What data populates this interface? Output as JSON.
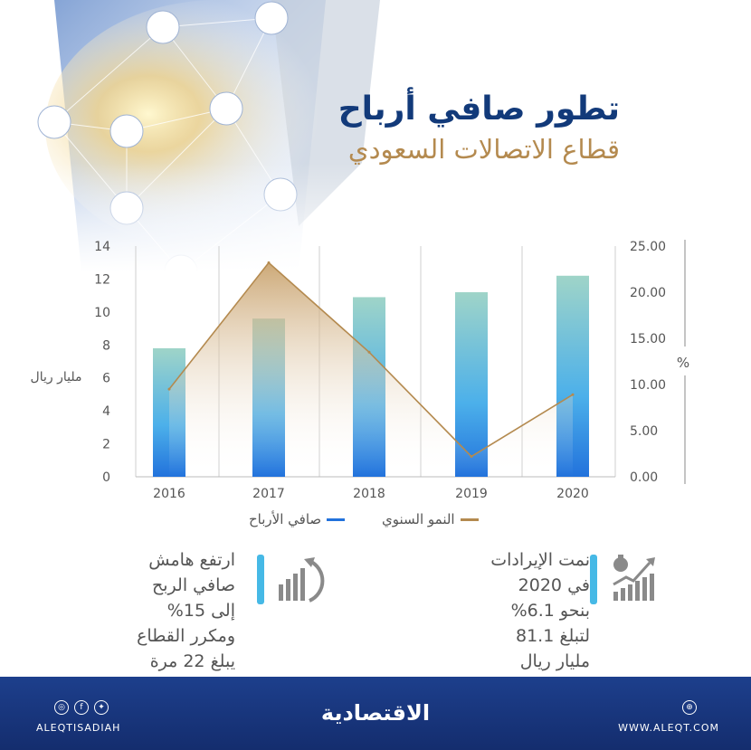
{
  "header": {
    "title": "تطور صافي أرباح",
    "subtitle": "قطاع الاتصالات السعودي"
  },
  "chart_data": {
    "type": "bar",
    "categories": [
      "2016",
      "2017",
      "2018",
      "2019",
      "2020"
    ],
    "series": [
      {
        "name": "صافي الأرباح",
        "type": "bar",
        "axis": "left",
        "values": [
          7.8,
          9.6,
          10.9,
          11.2,
          12.2
        ]
      },
      {
        "name": "النمو السنوي",
        "type": "line",
        "axis": "right",
        "values": [
          9.5,
          23.2,
          13.5,
          2.2,
          8.9
        ]
      }
    ],
    "left_axis": {
      "label": "مليار ريال",
      "ylim": [
        0,
        14
      ],
      "ticks": [
        "0",
        "2",
        "4",
        "6",
        "8",
        "10",
        "12",
        "14"
      ]
    },
    "right_axis": {
      "label": "%",
      "ylim": [
        0,
        25
      ],
      "ticks": [
        "0.00",
        "5.00",
        "10.00",
        "15.00",
        "20.00",
        "25.00"
      ]
    },
    "colors": {
      "bars": "#2272dc",
      "line": "#b48a4f"
    },
    "grid": "vertical"
  },
  "legend": {
    "profit": "صافي الأرباح",
    "growth": "النمو السنوي"
  },
  "cards": {
    "left": "ارتفع هامش\nصافي الربح\nإلى 15%\nومكرر القطاع\nيبلغ 22 مرة",
    "right": "نمت الإيرادات\nفي 2020\nبنحو 6.1%\nلتبلغ 81.1\nمليار ريال"
  },
  "footer": {
    "left_handle": "ALEQTISADIAH",
    "brand": "الاقتصادية",
    "right_url": "WWW.ALEQT.COM"
  }
}
